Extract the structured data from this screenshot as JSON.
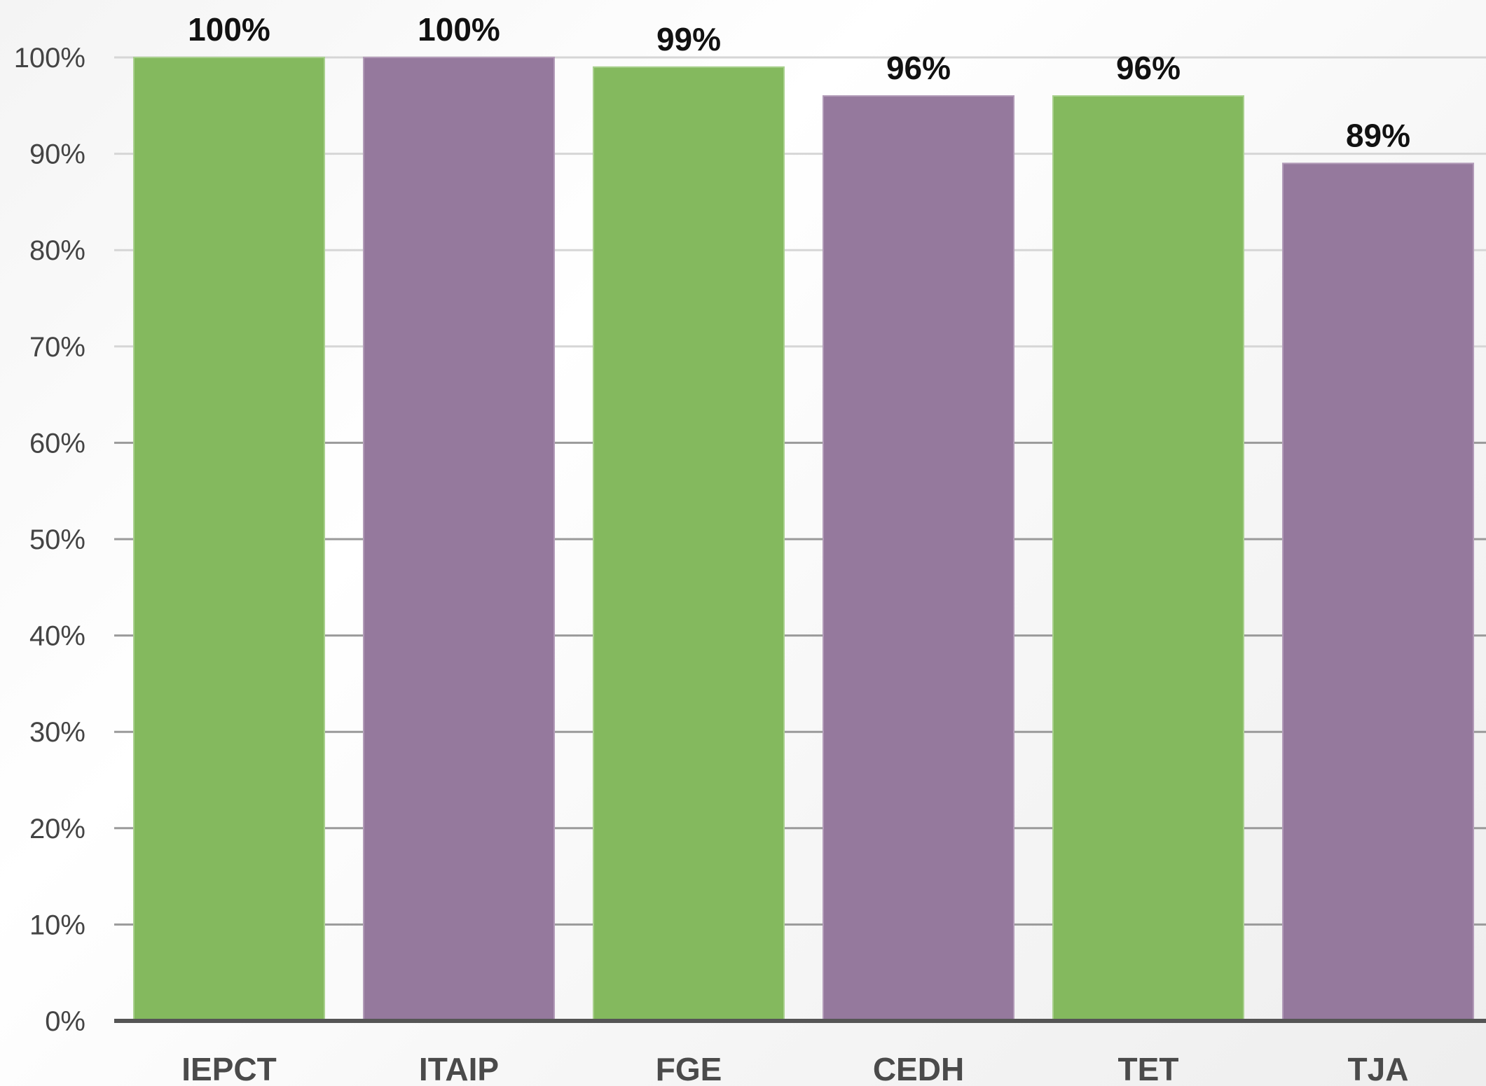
{
  "chart_data": {
    "type": "bar",
    "categories": [
      "IEPCT",
      "ITAIP",
      "FGE",
      "CEDH",
      "TET",
      "TJA"
    ],
    "values": [
      100,
      100,
      99,
      96,
      96,
      89
    ],
    "value_labels": [
      "100%",
      "100%",
      "99%",
      "96%",
      "96%",
      "89%"
    ],
    "ylim": [
      0,
      100
    ],
    "y_ticks": [
      0,
      10,
      20,
      30,
      40,
      50,
      60,
      70,
      80,
      90,
      100
    ],
    "y_tick_labels": [
      "0%",
      "10%",
      "20%",
      "30%",
      "40%",
      "50%",
      "60%",
      "70%",
      "80%",
      "90%",
      "100%"
    ],
    "grid": true,
    "legend": "none",
    "bar_colors": [
      "#84b95e",
      "#95799d",
      "#84b95e",
      "#95799d",
      "#84b95e",
      "#95799d"
    ],
    "title": "",
    "xlabel": "",
    "ylabel": ""
  }
}
